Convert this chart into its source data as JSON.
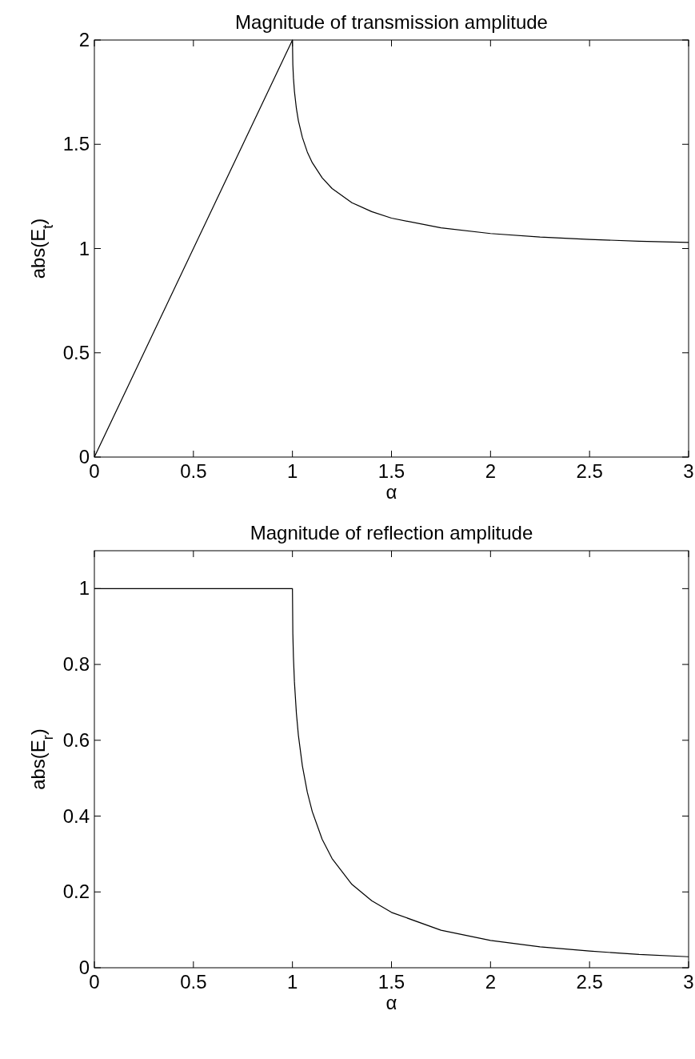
{
  "chart_data": [
    {
      "type": "line",
      "title": "Magnitude of transmission amplitude",
      "xlabel": "α",
      "ylabel": "abs(E$_{t}$)",
      "xlim": [
        0,
        3
      ],
      "ylim": [
        0,
        2
      ],
      "xticks": [
        0,
        0.5,
        1,
        1.5,
        2,
        2.5,
        3
      ],
      "yticks": [
        0,
        0.5,
        1,
        1.5,
        2
      ],
      "grid": false,
      "marker": "none",
      "line_style": "solid",
      "series": [
        {
          "color": "#000000",
          "x": [
            0,
            1,
            1.002,
            1.005,
            1.01,
            1.02,
            1.03,
            1.05,
            1.075,
            1.1,
            1.15,
            1.2,
            1.3,
            1.4,
            1.5,
            1.75,
            2,
            2.25,
            2.5,
            2.75,
            3
          ],
          "values": [
            0,
            2,
            1.881,
            1.819,
            1.754,
            1.671,
            1.613,
            1.533,
            1.463,
            1.412,
            1.339,
            1.288,
            1.22,
            1.177,
            1.146,
            1.099,
            1.072,
            1.055,
            1.044,
            1.035,
            1.029
          ]
        }
      ]
    },
    {
      "type": "line",
      "title": "Magnitude of reflection amplitude",
      "xlabel": "α",
      "ylabel": "abs(E$_{r}$)",
      "xlim": [
        0,
        3
      ],
      "ylim": [
        0,
        1.1
      ],
      "xticks": [
        0,
        0.5,
        1,
        1.5,
        2,
        2.5,
        3
      ],
      "yticks": [
        0,
        0.2,
        0.4,
        0.6,
        0.8,
        1
      ],
      "grid": false,
      "marker": "none",
      "line_style": "solid",
      "series": [
        {
          "color": "#000000",
          "x": [
            0,
            1,
            1.002,
            1.005,
            1.01,
            1.02,
            1.03,
            1.05,
            1.075,
            1.1,
            1.15,
            1.2,
            1.3,
            1.4,
            1.5,
            1.75,
            2,
            2.25,
            2.5,
            2.75,
            3
          ],
          "values": [
            1,
            1,
            0.881,
            0.819,
            0.754,
            0.671,
            0.613,
            0.533,
            0.463,
            0.412,
            0.339,
            0.288,
            0.22,
            0.177,
            0.146,
            0.099,
            0.072,
            0.055,
            0.044,
            0.035,
            0.029
          ]
        }
      ]
    }
  ]
}
